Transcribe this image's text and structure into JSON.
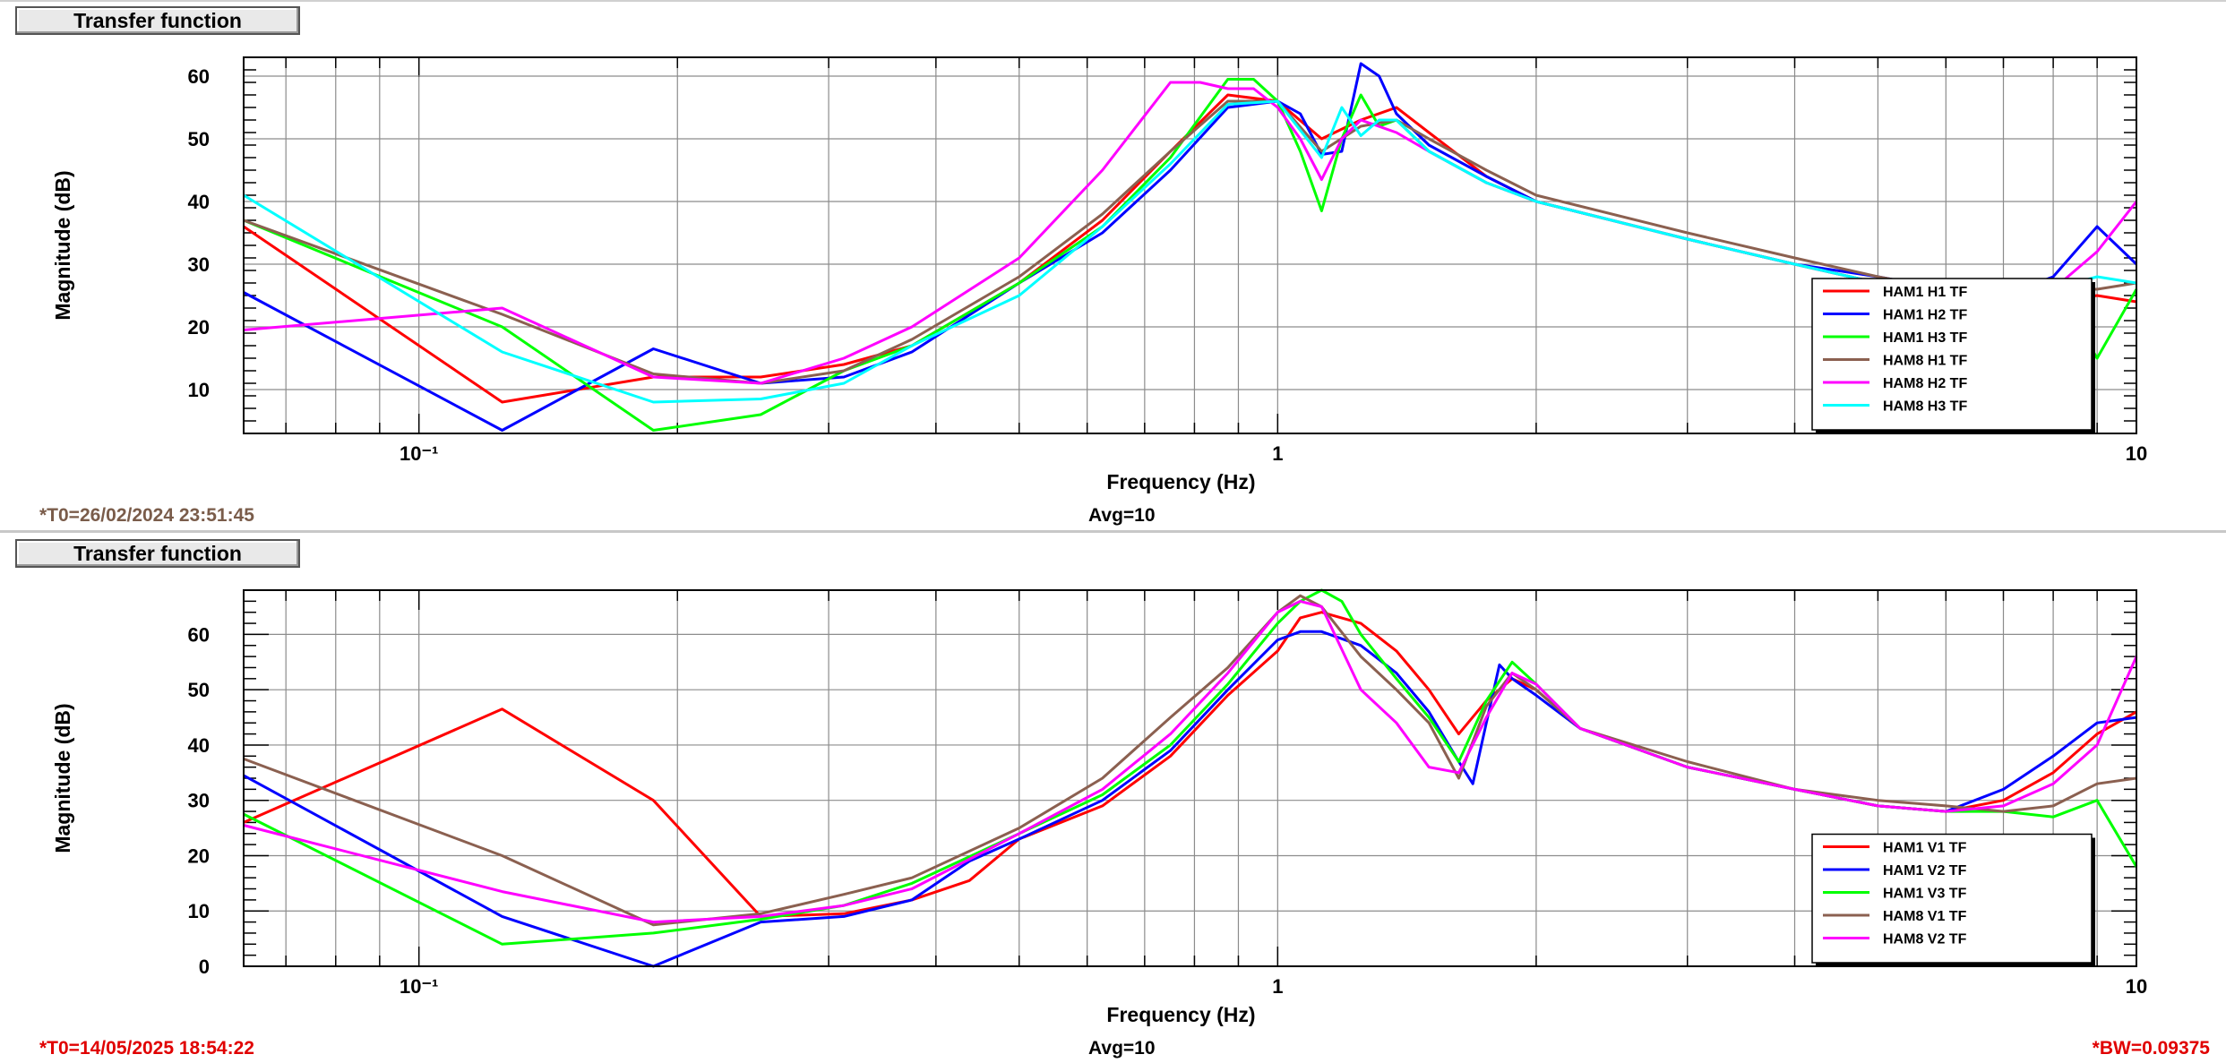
{
  "panels": [
    {
      "id": "top",
      "title": "Transfer function",
      "t0": "*T0=26/02/2024 23:51:45",
      "t0_color": "#7a5c4a",
      "avg": "Avg=10",
      "bw": "",
      "bw_color": "#e00000"
    },
    {
      "id": "bottom",
      "title": "Transfer function",
      "t0": "*T0=14/05/2025 18:54:22",
      "t0_color": "#e00000",
      "avg": "Avg=10",
      "bw": "*BW=0.09375",
      "bw_color": "#e00000"
    }
  ],
  "chart_data": [
    {
      "type": "line",
      "xscale": "log",
      "xlim": [
        0.0625,
        10
      ],
      "ylim": [
        3,
        63
      ],
      "xlabel": "Frequency (Hz)",
      "ylabel": "Magnitude (dB)",
      "grid": true,
      "legend": "bottom-right",
      "xtick_labels": [
        "10⁻¹",
        "1",
        "10"
      ],
      "yticks": [
        10,
        20,
        30,
        40,
        50,
        60
      ],
      "series": [
        {
          "name": "HAM1 H1 TF",
          "color": "#ff0000",
          "x": [
            0.0625,
            0.125,
            0.1875,
            0.25,
            0.3125,
            0.375,
            0.5,
            0.625,
            0.75,
            0.875,
            1.0,
            1.125,
            1.25,
            1.375,
            1.5,
            1.75,
            2,
            3,
            4,
            5,
            6,
            7,
            8,
            9,
            10
          ],
          "y": [
            36,
            8,
            12,
            12,
            14,
            17,
            27,
            37,
            48,
            57,
            56,
            50,
            53,
            55,
            51,
            44,
            40,
            34,
            30,
            27,
            25,
            24,
            24,
            25,
            24
          ]
        },
        {
          "name": "HAM1 H2 TF",
          "color": "#0000ff",
          "x": [
            0.0625,
            0.125,
            0.1875,
            0.25,
            0.3125,
            0.375,
            0.5,
            0.625,
            0.75,
            0.875,
            1.0,
            1.0625,
            1.125,
            1.1875,
            1.25,
            1.3125,
            1.375,
            1.5,
            1.75,
            2,
            3,
            4,
            5,
            6,
            7,
            8,
            9,
            10
          ],
          "y": [
            25.5,
            3.5,
            16.5,
            11,
            12,
            16,
            27,
            35,
            45,
            55,
            56,
            54,
            47.5,
            48,
            62,
            60,
            54,
            49,
            44,
            40,
            34,
            30,
            28,
            26,
            25,
            28,
            36,
            30
          ]
        },
        {
          "name": "HAM1 H3 TF",
          "color": "#00ff00",
          "x": [
            0.0625,
            0.125,
            0.1875,
            0.25,
            0.3125,
            0.375,
            0.5,
            0.625,
            0.75,
            0.875,
            0.9375,
            1.0,
            1.0625,
            1.125,
            1.1875,
            1.25,
            1.3125,
            1.375,
            1.5,
            1.75,
            2,
            3,
            4,
            5,
            6,
            7,
            8,
            9,
            10
          ],
          "y": [
            37,
            20,
            3.5,
            6,
            13,
            17,
            27,
            36,
            47,
            59.5,
            59.5,
            56,
            48,
            38.5,
            50,
            57,
            52,
            53,
            48,
            43,
            40,
            34,
            30,
            27,
            26,
            25,
            27,
            15,
            26
          ]
        },
        {
          "name": "HAM8 H1 TF",
          "color": "#8b6050",
          "x": [
            0.0625,
            0.125,
            0.1875,
            0.25,
            0.3125,
            0.375,
            0.5,
            0.625,
            0.75,
            0.875,
            1.0,
            1.125,
            1.25,
            1.375,
            1.5,
            1.75,
            2,
            3,
            4,
            5,
            6,
            7,
            8,
            9,
            10
          ],
          "y": [
            37,
            22,
            12.5,
            11,
            13,
            18,
            28,
            38,
            48,
            56,
            56,
            48,
            52,
            53,
            50,
            45,
            41,
            35,
            31,
            28,
            26,
            26,
            26,
            26,
            27
          ]
        },
        {
          "name": "HAM8 H2 TF",
          "color": "#ff00ff",
          "x": [
            0.0625,
            0.125,
            0.1875,
            0.25,
            0.3125,
            0.375,
            0.5,
            0.625,
            0.75,
            0.8125,
            0.875,
            0.9375,
            1.0,
            1.0625,
            1.125,
            1.1875,
            1.25,
            1.375,
            1.5,
            1.75,
            2,
            3,
            4,
            5,
            6,
            7,
            8,
            9,
            10
          ],
          "y": [
            19.5,
            23,
            12,
            11,
            15,
            20,
            31,
            45,
            59,
            59,
            58,
            58,
            55,
            50,
            43.5,
            50,
            53,
            51,
            48,
            43,
            40,
            34,
            30,
            27,
            25,
            25,
            26,
            32,
            40
          ]
        },
        {
          "name": "HAM8 H3 TF",
          "color": "#00ffff",
          "x": [
            0.0625,
            0.125,
            0.1875,
            0.25,
            0.3125,
            0.375,
            0.5,
            0.625,
            0.75,
            0.875,
            1.0,
            1.125,
            1.1875,
            1.25,
            1.3125,
            1.375,
            1.5,
            1.75,
            2,
            3,
            4,
            5,
            6,
            7,
            8,
            9,
            10
          ],
          "y": [
            41,
            16,
            8,
            8.5,
            11,
            17,
            25,
            36,
            46,
            55.5,
            56,
            47,
            55,
            50.5,
            53,
            53,
            48,
            43,
            40,
            34,
            30,
            27,
            25,
            25,
            26,
            28,
            27
          ]
        }
      ]
    },
    {
      "type": "line",
      "xscale": "log",
      "xlim": [
        0.0625,
        10
      ],
      "ylim": [
        0,
        68
      ],
      "xlabel": "Frequency (Hz)",
      "ylabel": "Magnitude (dB)",
      "grid": true,
      "legend": "bottom-right",
      "xtick_labels": [
        "10⁻¹",
        "1",
        "10"
      ],
      "yticks": [
        0,
        10,
        20,
        30,
        40,
        50,
        60
      ],
      "series": [
        {
          "name": "HAM1 V1 TF",
          "color": "#ff0000",
          "x": [
            0.0625,
            0.125,
            0.1875,
            0.25,
            0.3125,
            0.375,
            0.4375,
            0.5,
            0.625,
            0.75,
            0.875,
            1.0,
            1.0625,
            1.125,
            1.25,
            1.375,
            1.5,
            1.625,
            1.75,
            1.875,
            2,
            2.25,
            3,
            4,
            5,
            6,
            7,
            8,
            9,
            10
          ],
          "y": [
            26,
            46.5,
            30,
            9,
            9.5,
            12,
            15.5,
            23,
            29,
            38,
            49,
            57,
            63,
            64,
            62,
            57,
            50,
            42,
            48,
            52,
            50,
            43,
            36,
            32,
            29,
            28,
            30,
            35,
            42,
            46
          ]
        },
        {
          "name": "HAM1 V2 TF",
          "color": "#0000ff",
          "x": [
            0.0625,
            0.125,
            0.1875,
            0.25,
            0.3125,
            0.375,
            0.4375,
            0.5,
            0.625,
            0.75,
            0.875,
            1.0,
            1.0625,
            1.125,
            1.25,
            1.375,
            1.5,
            1.625,
            1.6875,
            1.75,
            1.8125,
            1.875,
            2,
            2.25,
            3,
            4,
            5,
            6,
            7,
            8,
            9,
            10
          ],
          "y": [
            34.5,
            9,
            0,
            8,
            9,
            12,
            19,
            23,
            30,
            39,
            50,
            59,
            60.5,
            60.5,
            58,
            53,
            46,
            37,
            33,
            44,
            54.5,
            52,
            49,
            43,
            36,
            32,
            29,
            28,
            32,
            38,
            44,
            45
          ]
        },
        {
          "name": "HAM1 V3 TF",
          "color": "#00ff00",
          "x": [
            0.0625,
            0.125,
            0.1875,
            0.25,
            0.3125,
            0.375,
            0.5,
            0.625,
            0.75,
            0.875,
            1.0,
            1.0625,
            1.125,
            1.1875,
            1.25,
            1.375,
            1.5,
            1.625,
            1.75,
            1.875,
            2,
            2.25,
            3,
            4,
            5,
            6,
            7,
            8,
            9,
            10
          ],
          "y": [
            27.5,
            4,
            6,
            8.5,
            11,
            15,
            24,
            31,
            40,
            51,
            62,
            66,
            68,
            66,
            60,
            52,
            45,
            37,
            48,
            55,
            51,
            43,
            36,
            32,
            29,
            28,
            28,
            27,
            30,
            18
          ]
        },
        {
          "name": "HAM8 V1 TF",
          "color": "#8b6050",
          "x": [
            0.0625,
            0.125,
            0.1875,
            0.25,
            0.3125,
            0.375,
            0.5,
            0.625,
            0.75,
            0.875,
            1.0,
            1.0625,
            1.125,
            1.25,
            1.375,
            1.5,
            1.625,
            1.75,
            1.875,
            2,
            2.25,
            3,
            4,
            5,
            6,
            7,
            8,
            9,
            10
          ],
          "y": [
            37.5,
            20,
            7.5,
            9.5,
            13,
            16,
            25,
            34,
            45,
            54,
            64,
            67,
            65,
            56,
            50,
            44,
            34,
            47,
            53,
            50,
            43,
            37,
            32,
            30,
            29,
            28,
            29,
            33,
            34
          ]
        },
        {
          "name": "HAM8 V2 TF",
          "color": "#ff00ff",
          "x": [
            0.0625,
            0.125,
            0.1875,
            0.25,
            0.3125,
            0.375,
            0.5,
            0.625,
            0.75,
            0.875,
            1.0,
            1.0625,
            1.125,
            1.25,
            1.375,
            1.5,
            1.625,
            1.75,
            1.875,
            2,
            2.25,
            3,
            4,
            5,
            6,
            7,
            8,
            9,
            10
          ],
          "y": [
            25.5,
            13.5,
            8,
            9,
            11,
            14,
            24,
            32,
            42,
            53,
            64,
            66,
            65,
            50,
            44,
            36,
            35,
            45,
            53,
            51,
            43,
            36,
            32,
            29,
            28,
            29,
            33,
            40,
            56
          ]
        }
      ]
    }
  ]
}
